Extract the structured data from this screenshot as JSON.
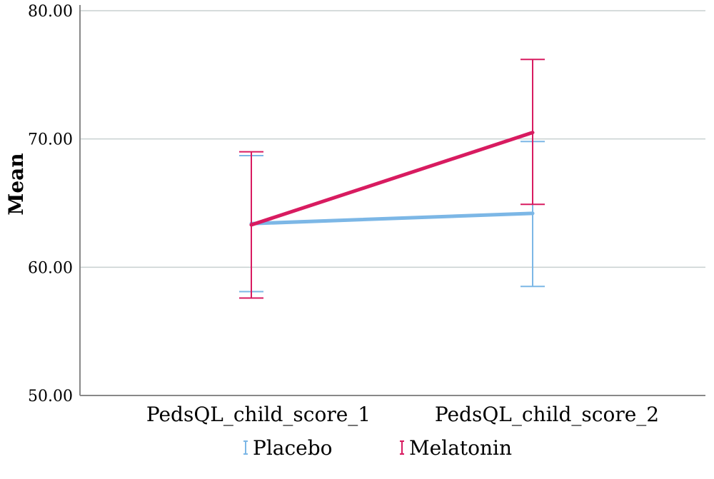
{
  "chart_data": {
    "type": "line",
    "title": "",
    "xlabel": "",
    "ylabel": "Mean",
    "categories": [
      "PedsQL_child_score_1",
      "PedsQL_child_score_2"
    ],
    "ylim": [
      50,
      80
    ],
    "yticks": [
      "50.00",
      "60.00",
      "70.00",
      "80.00"
    ],
    "grid": true,
    "legend_position": "bottom-center",
    "series": [
      {
        "name": "Placebo",
        "color": "#7cb7e6",
        "values": [
          63.4,
          64.2
        ],
        "ci_low": [
          58.1,
          58.5
        ],
        "ci_high": [
          68.7,
          69.8
        ]
      },
      {
        "name": "Melatonin",
        "color": "#d81b60",
        "values": [
          63.3,
          70.5
        ],
        "ci_low": [
          57.6,
          64.9
        ],
        "ci_high": [
          69.0,
          76.2
        ]
      }
    ]
  }
}
